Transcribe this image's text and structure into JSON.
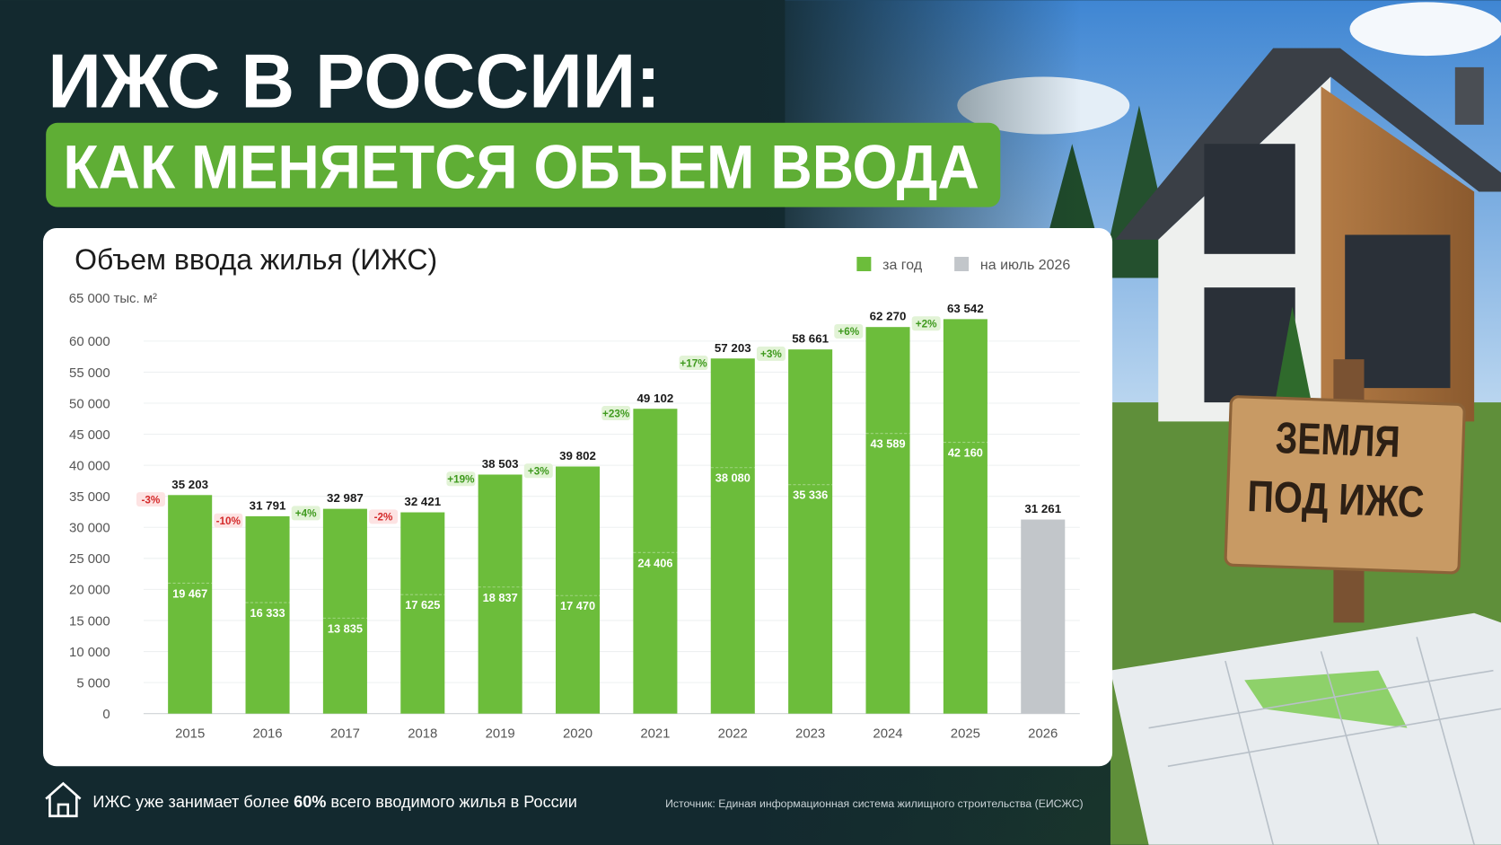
{
  "header": {
    "title": "ИЖС В РОССИИ:",
    "subtitle": "КАК МЕНЯЕТСЯ ОБЪЕМ ВВОДА"
  },
  "chart_data": {
    "type": "bar",
    "title": "Объем ввода жилья (ИЖС)",
    "categories": [
      "2015",
      "2016",
      "2017",
      "2018",
      "2019",
      "2020",
      "2021",
      "2022",
      "2023",
      "2024",
      "2025",
      "2026"
    ],
    "series": [
      {
        "name": "за год",
        "color": "#6cbd3b",
        "values": [
          35203,
          31791,
          32987,
          32421,
          38503,
          39802,
          49102,
          57203,
          58661,
          62270,
          63542,
          null
        ],
        "value_labels": [
          "35 203",
          "31 791",
          "32 987",
          "32 421",
          "38 503",
          "39 802",
          "49 102",
          "57 203",
          "58 661",
          "62 270",
          "63 542",
          null
        ],
        "inner_values": [
          19467,
          16333,
          13835,
          17625,
          18837,
          17470,
          24406,
          38080,
          35336,
          43589,
          42160,
          null
        ],
        "inner_value_labels": [
          "19 467",
          "16 333",
          "13 835",
          "17 625",
          "18 837",
          "17 470",
          "24 406",
          "38 080",
          "35 336",
          "43 589",
          "42 160",
          null
        ],
        "change_labels": [
          "-3%",
          "-10%",
          "+4%",
          "-2%",
          "+19%",
          "+3%",
          "+23%",
          "+17%",
          "+3%",
          "+6%",
          "+2%",
          null
        ]
      },
      {
        "name": "на июль 2026",
        "color": "#c2c6ca",
        "values": [
          null,
          null,
          null,
          null,
          null,
          null,
          null,
          null,
          null,
          null,
          null,
          31261
        ],
        "value_labels": [
          null,
          null,
          null,
          null,
          null,
          null,
          null,
          null,
          null,
          null,
          null,
          "31 261"
        ]
      }
    ],
    "ylim": [
      0,
      65000
    ],
    "yticks": [
      0,
      {
        "value": 5000,
        "label": "5 000"
      },
      {
        "value": 10000,
        "label": "10 000"
      },
      {
        "value": 15000,
        "label": "15 000"
      },
      {
        "value": 20000,
        "label": "20 000"
      },
      {
        "value": 25000,
        "label": "25 000"
      },
      {
        "value": 30000,
        "label": "30 000"
      },
      {
        "value": 35000,
        "label": "35 000"
      },
      {
        "value": 40000,
        "label": "40 000"
      },
      {
        "value": 45000,
        "label": "45 000"
      },
      {
        "value": 50000,
        "label": "50 000"
      },
      {
        "value": 55000,
        "label": "55 000"
      },
      {
        "value": 60000,
        "label": "60 000"
      },
      {
        "value": 65000,
        "label": "65 000 тыс. м²"
      }
    ],
    "grid": true,
    "legend": "top-right"
  },
  "footer": {
    "note": [
      "ИЖС уже занимает более ",
      "60%",
      " всего вводимого жилья в России"
    ],
    "source": "Источник: Единая информационная система жилищного строительства (ЕИСЖС)"
  },
  "sign": [
    "ЗЕМЛЯ",
    "ПОД ИЖС"
  ]
}
